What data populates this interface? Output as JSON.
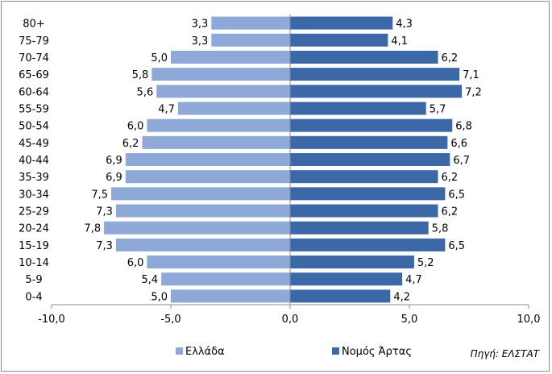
{
  "chart_data": {
    "type": "bar",
    "orientation": "horizontal",
    "layout": "population-pyramid",
    "categories": [
      "80+",
      "75-79",
      "70-74",
      "65-69",
      "60-64",
      "55-59",
      "50-54",
      "45-49",
      "40-44",
      "35-39",
      "30-34",
      "25-29",
      "20-24",
      "15-19",
      "10-14",
      "5-9",
      "0-4"
    ],
    "series": [
      {
        "name": "Ελλάδα",
        "color": "#8ea9d7",
        "values": [
          3.3,
          3.3,
          5.0,
          5.8,
          5.6,
          4.7,
          6.0,
          6.2,
          6.9,
          6.9,
          7.5,
          7.3,
          7.8,
          7.3,
          6.0,
          5.4,
          5.0
        ],
        "labels": [
          "3,3",
          "3,3",
          "5,0",
          "5,8",
          "5,6",
          "4,7",
          "6,0",
          "6,2",
          "6,9",
          "6,9",
          "7,5",
          "7,3",
          "7,8",
          "7,3",
          "6,0",
          "5,4",
          "5,0"
        ]
      },
      {
        "name": "Νομός Άρτας",
        "color": "#3c68a8",
        "values": [
          4.3,
          4.1,
          6.2,
          7.1,
          7.2,
          5.7,
          6.8,
          6.6,
          6.7,
          6.2,
          6.5,
          6.2,
          5.8,
          6.5,
          5.2,
          4.7,
          4.2
        ],
        "labels": [
          "4,3",
          "4,1",
          "6,2",
          "7,1",
          "7,2",
          "5,7",
          "6,8",
          "6,6",
          "6,7",
          "6,2",
          "6,5",
          "6,2",
          "5,8",
          "6,5",
          "5,2",
          "4,7",
          "4,2"
        ]
      }
    ],
    "xlim": [
      -10,
      10
    ],
    "xticks": [
      -10,
      -5,
      0,
      5,
      10
    ],
    "xtick_labels": [
      "-10,0",
      "-5,0",
      "0,0",
      "5,0",
      "10,0"
    ],
    "grid": false,
    "legend_position": "bottom"
  },
  "source_note": "Πηγή: ΕΛΣΤΑΤ"
}
